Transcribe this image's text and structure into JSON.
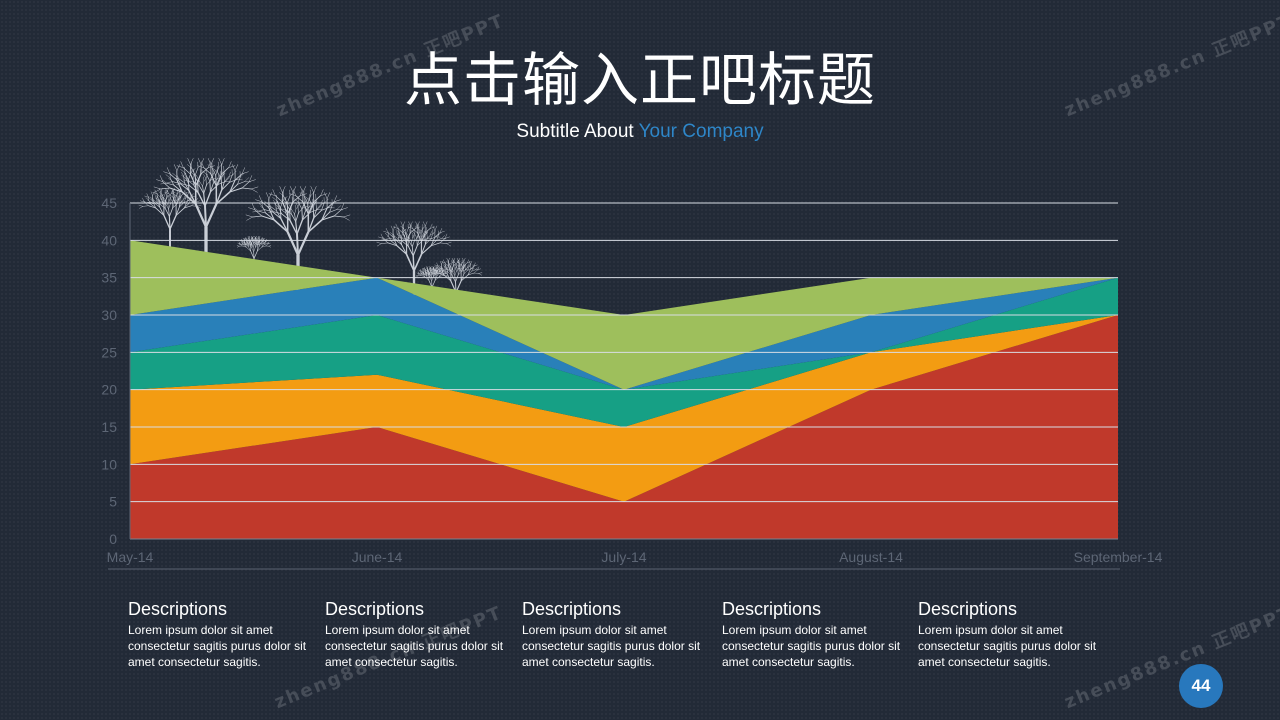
{
  "slide": {
    "title": "点击输入正吧标题",
    "subtitle_prefix": "Subtitle About ",
    "subtitle_accent": "Your Company",
    "accent_color": "#2e86c8",
    "page_number": "44",
    "watermark": "zheng888.cn 正吧PPT"
  },
  "chart_data": {
    "type": "area",
    "stacked": true,
    "categories": [
      "May-14",
      "June-14",
      "July-14",
      "August-14",
      "September-14"
    ],
    "ylim": [
      0,
      45
    ],
    "yticks": [
      0,
      5,
      10,
      15,
      20,
      25,
      30,
      35,
      40,
      45
    ],
    "grid": true,
    "series": [
      {
        "values": [
          10,
          15,
          5,
          20,
          30
        ],
        "color": "#c0392b"
      },
      {
        "values": [
          10,
          7,
          10,
          5,
          0
        ],
        "color": "#f39c12"
      },
      {
        "values": [
          5,
          8,
          5,
          0,
          5
        ],
        "color": "#16a085"
      },
      {
        "values": [
          5,
          5,
          0,
          5,
          0
        ],
        "color": "#2980b9"
      },
      {
        "values": [
          10,
          0,
          10,
          5,
          0
        ],
        "color": "#9ebf5c"
      }
    ]
  },
  "descriptions": [
    {
      "title": "Descriptions",
      "text": "Lorem ipsum dolor  sit amet consectetur sagitis purus dolor sit amet consectetur sagitis."
    },
    {
      "title": "Descriptions",
      "text": "Lorem ipsum dolor  sit amet consectetur sagitis purus dolor sit amet consectetur sagitis."
    },
    {
      "title": "Descriptions",
      "text": "Lorem ipsum dolor  sit amet consectetur sagitis purus dolor sit amet consectetur sagitis."
    },
    {
      "title": "Descriptions",
      "text": "Lorem ipsum dolor  sit amet consectetur sagitis purus dolor sit amet consectetur sagitis."
    },
    {
      "title": "Descriptions",
      "text": "Lorem ipsum dolor  sit amet consectetur sagitis purus dolor sit amet consectetur sagitis."
    }
  ]
}
